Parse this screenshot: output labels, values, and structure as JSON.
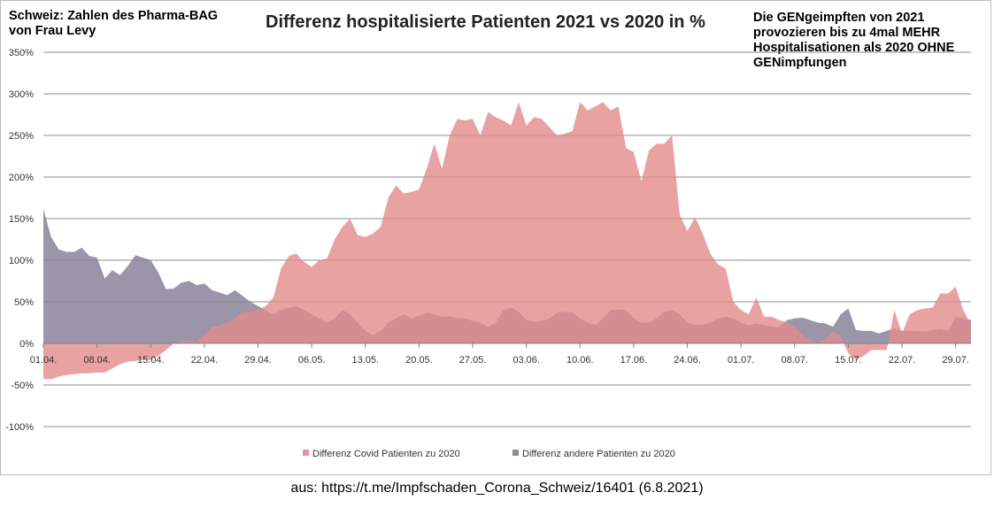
{
  "annotations": {
    "left": "Schweiz: Zahlen des Pharma-BAG\nvon Frau Levy",
    "right": "Die GENgeimpften von 2021\nprovozieren bis zu 4mal MEHR\nHospitalisationen als 2020 OHNE\nGENimpfungen"
  },
  "source": "aus: https://t.me/Impfschaden_Corona_Schweiz/16401 (6.8.2021)",
  "chart_data": {
    "type": "area",
    "title": "Differenz hospitalisierte Patienten 2021 vs 2020 in %",
    "xlabel": "",
    "ylabel": "",
    "x_start": "01.04.",
    "x_end": "31.07.",
    "x_ticks": [
      "01.04.",
      "08.04.",
      "15.04.",
      "22.04.",
      "29.04.",
      "06.05.",
      "13.05.",
      "20.05.",
      "27.05.",
      "03.06.",
      "10.06.",
      "17.06.",
      "24.06.",
      "01.07.",
      "08.07.",
      "15.07.",
      "22.07.",
      "29.07."
    ],
    "y_ticks": [
      "350%",
      "300%",
      "250%",
      "200%",
      "150%",
      "100%",
      "50%",
      "0%",
      "-50%",
      "-100%"
    ],
    "ylim": [
      -100,
      350
    ],
    "y_unit": "%",
    "grid": true,
    "legend_position": "bottom",
    "series": [
      {
        "name": "Differenz andere Patienten zu 2020",
        "color": "#8a829a",
        "opacity": 0.85,
        "values": [
          162,
          128,
          113,
          110,
          110,
          115,
          105,
          103,
          78,
          88,
          82,
          93,
          106,
          103,
          100,
          85,
          65,
          66,
          73,
          75,
          70,
          72,
          64,
          61,
          58,
          64,
          57,
          50,
          45,
          40,
          35,
          40,
          43,
          45,
          40,
          35,
          30,
          25,
          30,
          40,
          35,
          25,
          15,
          10,
          15,
          25,
          30,
          35,
          30,
          33,
          37,
          35,
          32,
          33,
          30,
          30,
          27,
          25,
          20,
          25,
          40,
          43,
          38,
          28,
          26,
          27,
          30,
          37,
          38,
          37,
          30,
          25,
          22,
          30,
          40,
          41,
          40,
          30,
          25,
          25,
          30,
          38,
          40,
          35,
          25,
          22,
          22,
          25,
          30,
          32,
          30,
          25,
          22,
          24,
          22,
          20,
          20,
          28,
          30,
          31,
          28,
          25,
          24,
          20,
          35,
          42,
          16,
          15,
          15,
          12,
          15,
          18,
          15,
          15,
          15,
          14,
          16,
          17,
          15,
          32,
          30,
          28
        ]
      },
      {
        "name": "Differenz Covid Patienten zu 2020",
        "color": "#e28b8b",
        "opacity": 0.8,
        "values": [
          -43,
          -43,
          -40,
          -38,
          -37,
          -36,
          -36,
          -35,
          -35,
          -30,
          -25,
          -22,
          -21,
          -20,
          -20,
          -15,
          -8,
          0,
          2,
          4,
          2,
          10,
          20,
          22,
          25,
          30,
          38,
          38,
          40,
          45,
          55,
          90,
          105,
          108,
          98,
          92,
          100,
          102,
          125,
          140,
          150,
          130,
          128,
          132,
          140,
          175,
          190,
          180,
          182,
          185,
          210,
          240,
          210,
          250,
          270,
          268,
          270,
          250,
          278,
          272,
          268,
          262,
          290,
          262,
          272,
          270,
          260,
          250,
          252,
          255,
          290,
          280,
          285,
          290,
          280,
          285,
          235,
          230,
          195,
          232,
          240,
          240,
          250,
          155,
          135,
          152,
          132,
          108,
          95,
          90,
          50,
          40,
          35,
          55,
          32,
          32,
          28,
          25,
          20,
          10,
          5,
          0,
          5,
          15,
          8,
          -12,
          -20,
          -15,
          -8,
          -8,
          -8,
          40,
          12,
          35,
          40,
          42,
          43,
          60,
          60,
          68,
          40,
          22
        ]
      }
    ]
  }
}
